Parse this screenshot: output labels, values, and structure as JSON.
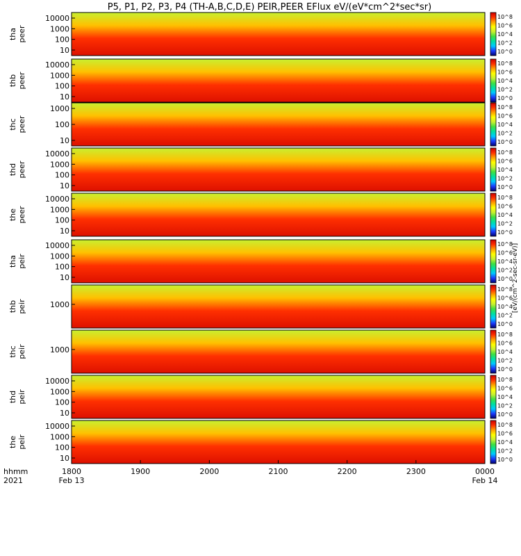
{
  "title": "P5, P1, P2, P3, P4 (TH-A,B,C,D,E) PEIR,PEER EFlux eV/(eV*cm^2*sec*sr)",
  "chart_data": {
    "type": "heatmap",
    "x_ticks": [
      "1800",
      "1900",
      "2000",
      "2100",
      "2200",
      "2300",
      "0000"
    ],
    "x_range": [
      "2021-02-13 18:00",
      "2021-02-14 00:00"
    ],
    "x_corner_labels": [
      "hhmm",
      "2021"
    ],
    "x_date_labels": [
      {
        "at": "1800",
        "label": "Feb 13"
      },
      {
        "at": "0000",
        "label": "Feb 14"
      }
    ],
    "yscale": "log",
    "colorbar_label": "[eV/(cm^2-sec-sr-eV)]",
    "colorbar_ticks": [
      "10^8",
      "10^6",
      "10^4",
      "10^2",
      "10^0"
    ],
    "colormap": [
      "#00006e",
      "#1c3cff",
      "#00c8ff",
      "#00e0a0",
      "#40e040",
      "#c8f030",
      "#ffff00",
      "#ffa000",
      "#ff3000",
      "#cc0000"
    ],
    "panels": [
      {
        "probe": "tha",
        "species": "peer",
        "yticks": [
          "10000",
          "1000",
          "100",
          "10"
        ]
      },
      {
        "probe": "thb",
        "species": "peer",
        "yticks": [
          "10000",
          "1000",
          "100",
          "10"
        ]
      },
      {
        "probe": "thc",
        "species": "peer",
        "yticks": [
          "1000",
          "100",
          "10"
        ]
      },
      {
        "probe": "thd",
        "species": "peer",
        "yticks": [
          "10000",
          "1000",
          "100",
          "10"
        ]
      },
      {
        "probe": "the",
        "species": "peer",
        "yticks": [
          "10000",
          "1000",
          "100",
          "10"
        ]
      },
      {
        "probe": "tha",
        "species": "peir",
        "yticks": [
          "10000",
          "1000",
          "100",
          "10"
        ]
      },
      {
        "probe": "thb",
        "species": "peir",
        "yticks": [
          "1000"
        ]
      },
      {
        "probe": "thc",
        "species": "peir",
        "yticks": [
          "1000"
        ]
      },
      {
        "probe": "thd",
        "species": "peir",
        "yticks": [
          "10000",
          "1000",
          "100",
          "10"
        ]
      },
      {
        "probe": "the",
        "species": "peir",
        "yticks": [
          "10000",
          "1000",
          "100",
          "10"
        ]
      }
    ]
  }
}
